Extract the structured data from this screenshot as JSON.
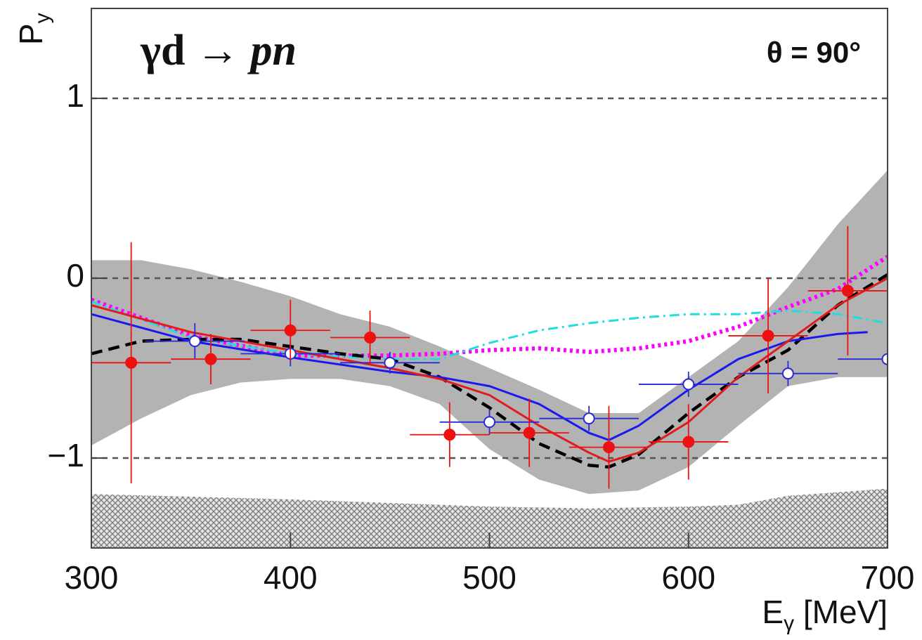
{
  "chart_data": {
    "type": "errorbar",
    "title": [
      "γd → ",
      "pn⃗"
    ],
    "annotation": "θ = 90°",
    "xlabel": [
      "E",
      "γ",
      " [MeV]"
    ],
    "ylabel": [
      "P",
      "y"
    ],
    "xlim": [
      300,
      700
    ],
    "ylim": [
      -1.5,
      1.5
    ],
    "xticks": [
      300,
      400,
      500,
      600,
      700
    ],
    "yticks": [
      {
        "value": -1,
        "label": "−1"
      },
      0,
      1
    ],
    "grid": true,
    "series": [
      {
        "type": "hatch",
        "color": "#888888",
        "x": [
          300,
          400,
          500,
          550,
          600,
          625,
          650,
          700
        ],
        "values": [
          -1.2,
          -1.23,
          -1.27,
          -1.28,
          -1.27,
          -1.26,
          -1.21,
          -1.17
        ]
      },
      {
        "type": "band",
        "color": "#b3b3b3",
        "x": [
          300,
          325,
          350,
          375,
          400,
          425,
          450,
          475,
          500,
          525,
          550,
          575,
          600,
          625,
          650,
          675,
          700
        ],
        "upper": [
          0.1,
          0.1,
          0.05,
          -0.02,
          -0.1,
          -0.2,
          -0.27,
          -0.38,
          -0.5,
          -0.62,
          -0.75,
          -0.75,
          -0.55,
          -0.35,
          -0.05,
          0.3,
          0.6
        ],
        "lower": [
          -0.93,
          -0.78,
          -0.65,
          -0.58,
          -0.56,
          -0.56,
          -0.6,
          -0.7,
          -0.95,
          -1.12,
          -1.2,
          -1.18,
          -1.05,
          -0.82,
          -0.6,
          -0.55,
          -0.55
        ]
      },
      {
        "type": "line",
        "color": "#ff00ff",
        "dash": "dotted",
        "x": [
          300,
          350,
          400,
          450,
          475,
          500,
          525,
          550,
          575,
          600,
          625,
          650,
          675,
          700
        ],
        "values": [
          -0.12,
          -0.32,
          -0.43,
          -0.43,
          -0.42,
          -0.4,
          -0.39,
          -0.41,
          -0.39,
          -0.35,
          -0.27,
          -0.16,
          -0.06,
          0.12
        ]
      },
      {
        "type": "line",
        "color": "#22dddd",
        "dash": "dashdot",
        "x": [
          300,
          350,
          400,
          450,
          475,
          500,
          525,
          550,
          575,
          600,
          625,
          650,
          675,
          700
        ],
        "values": [
          -0.13,
          -0.33,
          -0.42,
          -0.45,
          -0.45,
          -0.36,
          -0.29,
          -0.25,
          -0.22,
          -0.2,
          -0.2,
          -0.18,
          -0.2,
          -0.25
        ]
      },
      {
        "type": "line",
        "color": "#000000",
        "dash": "dashed",
        "x": [
          300,
          325,
          350,
          375,
          400,
          425,
          450,
          475,
          500,
          525,
          550,
          560,
          575,
          600,
          625,
          650,
          675,
          700
        ],
        "values": [
          -0.42,
          -0.35,
          -0.34,
          -0.34,
          -0.38,
          -0.42,
          -0.45,
          -0.55,
          -0.72,
          -0.92,
          -1.04,
          -1.05,
          -0.98,
          -0.75,
          -0.55,
          -0.4,
          -0.15,
          0.02
        ]
      },
      {
        "type": "line",
        "color": "#1a1aee",
        "dash": "solid",
        "x": [
          300,
          350,
          400,
          450,
          475,
          500,
          525,
          550,
          560,
          575,
          600,
          625,
          650,
          675,
          690
        ],
        "values": [
          -0.2,
          -0.35,
          -0.44,
          -0.52,
          -0.55,
          -0.6,
          -0.7,
          -0.86,
          -0.9,
          -0.82,
          -0.62,
          -0.45,
          -0.35,
          -0.31,
          -0.3
        ]
      },
      {
        "type": "line",
        "color": "#e21b1b",
        "dash": "solid",
        "x": [
          300,
          350,
          400,
          450,
          475,
          500,
          525,
          550,
          560,
          575,
          600,
          625,
          650,
          675,
          700
        ],
        "values": [
          -0.15,
          -0.3,
          -0.4,
          -0.5,
          -0.56,
          -0.65,
          -0.82,
          -0.97,
          -1.02,
          -0.97,
          -0.8,
          -0.55,
          -0.35,
          -0.15,
          0.0
        ]
      },
      {
        "type": "points",
        "color": "#2a2ad6",
        "marker": "open",
        "x": [
          352,
          400,
          450,
          500,
          550,
          600,
          650,
          700
        ],
        "values": [
          -0.35,
          -0.42,
          -0.47,
          -0.8,
          -0.78,
          -0.59,
          -0.53,
          -0.45
        ],
        "xerr": [
          25,
          25,
          25,
          25,
          25,
          25,
          25,
          25
        ],
        "yerr": [
          0.1,
          0.07,
          0.06,
          0.07,
          0.07,
          0.07,
          0.07,
          0.08
        ]
      },
      {
        "type": "points",
        "color": "#ee1111",
        "marker": "filled",
        "x": [
          320,
          360,
          400,
          440,
          480,
          520,
          560,
          600,
          640,
          680
        ],
        "values": [
          -0.47,
          -0.45,
          -0.29,
          -0.33,
          -0.87,
          -0.86,
          -0.94,
          -0.91,
          -0.32,
          -0.07
        ],
        "xerr": [
          20,
          20,
          20,
          20,
          20,
          20,
          20,
          20,
          20,
          20
        ],
        "yerr": [
          0.67,
          0.14,
          0.17,
          0.15,
          0.18,
          0.19,
          0.23,
          0.21,
          0.32,
          0.36
        ]
      }
    ]
  }
}
